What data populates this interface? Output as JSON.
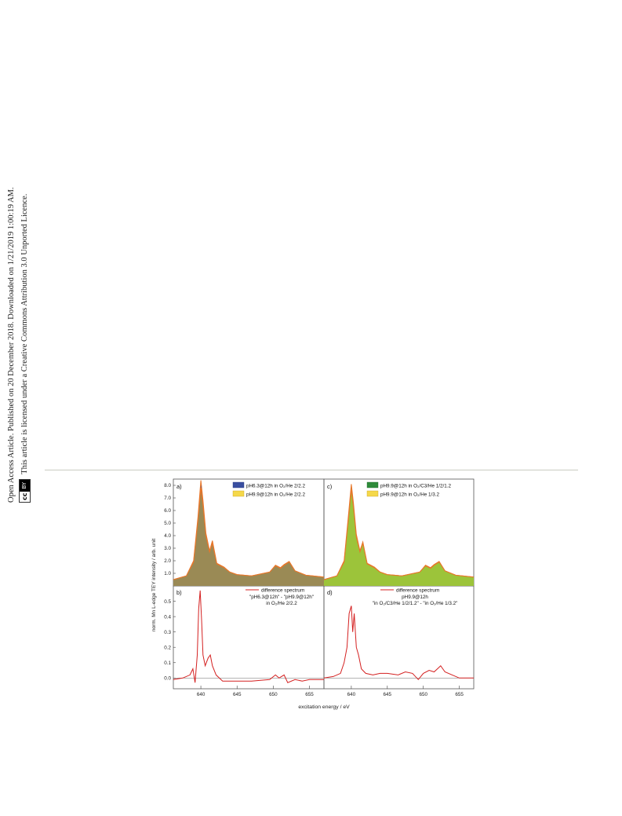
{
  "sidebar": {
    "line1": "Open Access Article. Published on 20 December 2018. Downloaded on 1/21/2019 1:00:19 AM.",
    "line2": "This article is licensed under a Creative Commons Attribution 3.0 Unported Licence.",
    "badge_cc": "cc",
    "badge_by": "BY"
  },
  "figure": {
    "ylabel": "norm. Mn L-edge TEY intensity / arb. unit",
    "xlabel": "excitation energy / eV",
    "panels": {
      "a": {
        "label": "a)",
        "legend": [
          "pH6.3@12h in O₂/He 2/2.2",
          "pH9.9@12h in O₂/He 2/2.2"
        ]
      },
      "b": {
        "label": "b)",
        "legend_series": "difference spectrum",
        "legend_lines": [
          "\"pH6.3@12h\" - \"pH9.9@12h\"",
          "in O₂/He 2/2.2"
        ]
      },
      "c": {
        "label": "c)",
        "legend": [
          "pH9.9@12h in O₂/C3/He 1/2/1.2",
          "pH9.9@12h in O₂/He 1/3.2"
        ]
      },
      "d": {
        "label": "d)",
        "legend_series": "difference spectrum",
        "legend_lines": [
          "pH9.9@12h",
          "\"in O₂/C3/He 1/2/1.2\" - \"in O₂/He 1/3.2\""
        ]
      }
    },
    "top_yticks": [
      "1.0",
      "2.0",
      "3.0",
      "4.0",
      "5.0",
      "6.0",
      "7.0",
      "8.0"
    ],
    "bottom_yticks": [
      "0.0",
      "0.1",
      "0.2",
      "0.3",
      "0.4",
      "0.5"
    ],
    "xticks": [
      "640",
      "645",
      "650",
      "655"
    ],
    "colors": {
      "a_blue": "#3a4fa0",
      "a_yellow": "#f5d84a",
      "a_overlap": "#9a8a55",
      "c_green": "#2e8b3a",
      "c_yellow": "#f5d84a",
      "c_overlap": "#9cc43a",
      "edge": "#e8772a",
      "diff": "#d42020"
    }
  },
  "chart_data": [
    {
      "type": "area",
      "panel": "a",
      "xlim": [
        636.2,
        657
      ],
      "ylim": [
        0,
        8.5
      ],
      "series": [
        {
          "name": "pH6.3@12h in O₂/He 2/2.2",
          "x": [
            636.2,
            638,
            639,
            639.6,
            640,
            640.3,
            640.7,
            641.2,
            641.6,
            642.2,
            643.2,
            644,
            645,
            647,
            649.5,
            650.3,
            651,
            651.5,
            652.2,
            653,
            654.5,
            657
          ],
          "y": [
            0.5,
            0.8,
            2.0,
            5.5,
            8.4,
            6.8,
            4.2,
            2.8,
            3.6,
            1.8,
            1.5,
            1.1,
            0.9,
            0.8,
            1.1,
            1.65,
            1.45,
            1.7,
            1.95,
            1.2,
            0.85,
            0.7
          ]
        },
        {
          "name": "pH9.9@12h in O₂/He 2/2.2",
          "x": [
            636.2,
            638,
            639,
            639.6,
            640,
            640.3,
            640.7,
            641.2,
            641.6,
            642.2,
            643.2,
            644,
            645,
            647,
            649.5,
            650.3,
            651,
            651.5,
            652.2,
            653,
            654.5,
            657
          ],
          "y": [
            0.5,
            0.8,
            1.9,
            5.2,
            7.8,
            6.4,
            4.0,
            2.7,
            3.4,
            1.75,
            1.45,
            1.1,
            0.9,
            0.8,
            1.1,
            1.6,
            1.4,
            1.65,
            1.9,
            1.2,
            0.85,
            0.7
          ]
        }
      ]
    },
    {
      "type": "line",
      "panel": "b",
      "xlim": [
        636.2,
        657
      ],
      "ylim": [
        -0.07,
        0.6
      ],
      "series": [
        {
          "name": "difference spectrum",
          "x": [
            636.2,
            637.5,
            638.5,
            638.9,
            639.2,
            639.5,
            639.7,
            639.9,
            640.1,
            640.3,
            640.6,
            641,
            641.3,
            641.6,
            642.1,
            643,
            645,
            647,
            649.5,
            650.3,
            650.8,
            651.5,
            652,
            653,
            654,
            655,
            657
          ],
          "y": [
            -0.01,
            0.0,
            0.02,
            0.06,
            -0.03,
            0.15,
            0.45,
            0.57,
            0.38,
            0.15,
            0.08,
            0.13,
            0.15,
            0.08,
            0.02,
            -0.02,
            -0.02,
            -0.02,
            -0.01,
            0.02,
            0.0,
            0.02,
            -0.03,
            -0.01,
            -0.02,
            -0.01,
            -0.01
          ]
        }
      ]
    },
    {
      "type": "area",
      "panel": "c",
      "xlim": [
        636.2,
        657
      ],
      "ylim": [
        0,
        8.5
      ],
      "series": [
        {
          "name": "pH9.9@12h in O₂/C3/He 1/2/1.2",
          "x": [
            636.2,
            638,
            639,
            639.6,
            640,
            640.3,
            640.7,
            641.2,
            641.6,
            642.2,
            643.2,
            644,
            645,
            647,
            649.5,
            650.3,
            651,
            651.5,
            652.2,
            653,
            654.5,
            657
          ],
          "y": [
            0.5,
            0.8,
            2.0,
            5.6,
            8.1,
            6.6,
            4.1,
            2.8,
            3.5,
            1.8,
            1.5,
            1.1,
            0.9,
            0.8,
            1.1,
            1.65,
            1.45,
            1.7,
            1.95,
            1.2,
            0.85,
            0.7
          ]
        },
        {
          "name": "pH9.9@12h in O₂/He 1/3.2",
          "x": [
            636.2,
            638,
            639,
            639.6,
            640,
            640.3,
            640.7,
            641.2,
            641.6,
            642.2,
            643.2,
            644,
            645,
            647,
            649.5,
            650.3,
            651,
            651.5,
            652.2,
            653,
            654.5,
            657
          ],
          "y": [
            0.5,
            0.8,
            1.9,
            5.3,
            7.7,
            6.3,
            3.9,
            2.7,
            3.4,
            1.75,
            1.45,
            1.1,
            0.9,
            0.8,
            1.1,
            1.6,
            1.4,
            1.65,
            1.9,
            1.2,
            0.85,
            0.7
          ]
        }
      ]
    },
    {
      "type": "line",
      "panel": "d",
      "xlim": [
        636.2,
        657
      ],
      "ylim": [
        -0.07,
        0.6
      ],
      "series": [
        {
          "name": "difference spectrum",
          "x": [
            636.2,
            637.5,
            638.5,
            639,
            639.4,
            639.7,
            640,
            640.2,
            640.4,
            640.7,
            641,
            641.4,
            642,
            643,
            644,
            645,
            646.5,
            647.5,
            648.5,
            649.3,
            650,
            650.8,
            651.5,
            652.4,
            653,
            654,
            655,
            657
          ],
          "y": [
            0.0,
            0.01,
            0.03,
            0.1,
            0.2,
            0.42,
            0.47,
            0.3,
            0.42,
            0.2,
            0.15,
            0.06,
            0.03,
            0.02,
            0.03,
            0.03,
            0.02,
            0.04,
            0.03,
            -0.01,
            0.03,
            0.05,
            0.04,
            0.08,
            0.04,
            0.02,
            0.0,
            0.0
          ]
        }
      ]
    }
  ]
}
